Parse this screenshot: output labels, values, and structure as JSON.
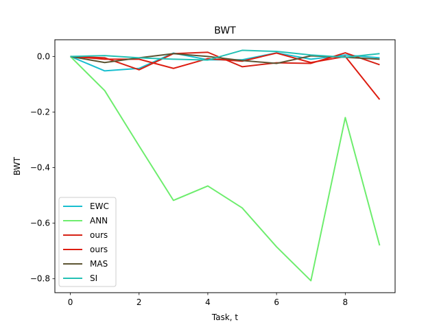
{
  "chart_data": {
    "type": "line",
    "title": "BWT",
    "xlabel": "Task, t",
    "ylabel": "BWT",
    "xlim": [
      -0.45,
      9.45
    ],
    "ylim": [
      -0.85,
      0.06
    ],
    "xticks": [
      0,
      2,
      4,
      6,
      8
    ],
    "xtick_labels": [
      "0",
      "2",
      "4",
      "6",
      "8"
    ],
    "yticks": [
      0.0,
      -0.2,
      -0.4,
      -0.6,
      -0.8
    ],
    "ytick_labels": [
      "0.0",
      "−0.2",
      "−0.4",
      "−0.6",
      "−0.8"
    ],
    "grid": false,
    "legend_position": "lower-left",
    "x": [
      0,
      1,
      2,
      3,
      4,
      5,
      6,
      7,
      8,
      9
    ],
    "series": [
      {
        "name": "EWC",
        "color": "#17becf",
        "values": [
          0.0,
          -0.052,
          -0.043,
          0.012,
          -0.012,
          -0.012,
          0.013,
          -0.01,
          0.005,
          -0.005
        ]
      },
      {
        "name": "ANN",
        "color": "#6ded6d",
        "values": [
          0.0,
          -0.123,
          -0.322,
          -0.518,
          -0.466,
          -0.545,
          -0.685,
          -0.807,
          -0.22,
          -0.68
        ]
      },
      {
        "name": "ours",
        "color": "#d62014",
        "values": [
          0.0,
          -0.005,
          -0.048,
          0.01,
          0.015,
          -0.037,
          -0.023,
          -0.025,
          0.013,
          -0.03
        ]
      },
      {
        "name": "ours",
        "color": "#dd1c10",
        "values": [
          0.0,
          -0.01,
          -0.01,
          -0.043,
          -0.008,
          -0.017,
          0.012,
          -0.022,
          0.0,
          -0.155
        ]
      },
      {
        "name": "MAS",
        "color": "#5b5331",
        "values": [
          0.0,
          -0.022,
          -0.005,
          0.01,
          0.0,
          -0.015,
          -0.025,
          0.002,
          -0.003,
          -0.01
        ]
      },
      {
        "name": "SI",
        "color": "#22c0b4",
        "values": [
          0.0,
          0.003,
          -0.005,
          -0.01,
          -0.013,
          0.022,
          0.018,
          0.005,
          -0.003,
          0.01
        ]
      }
    ]
  }
}
